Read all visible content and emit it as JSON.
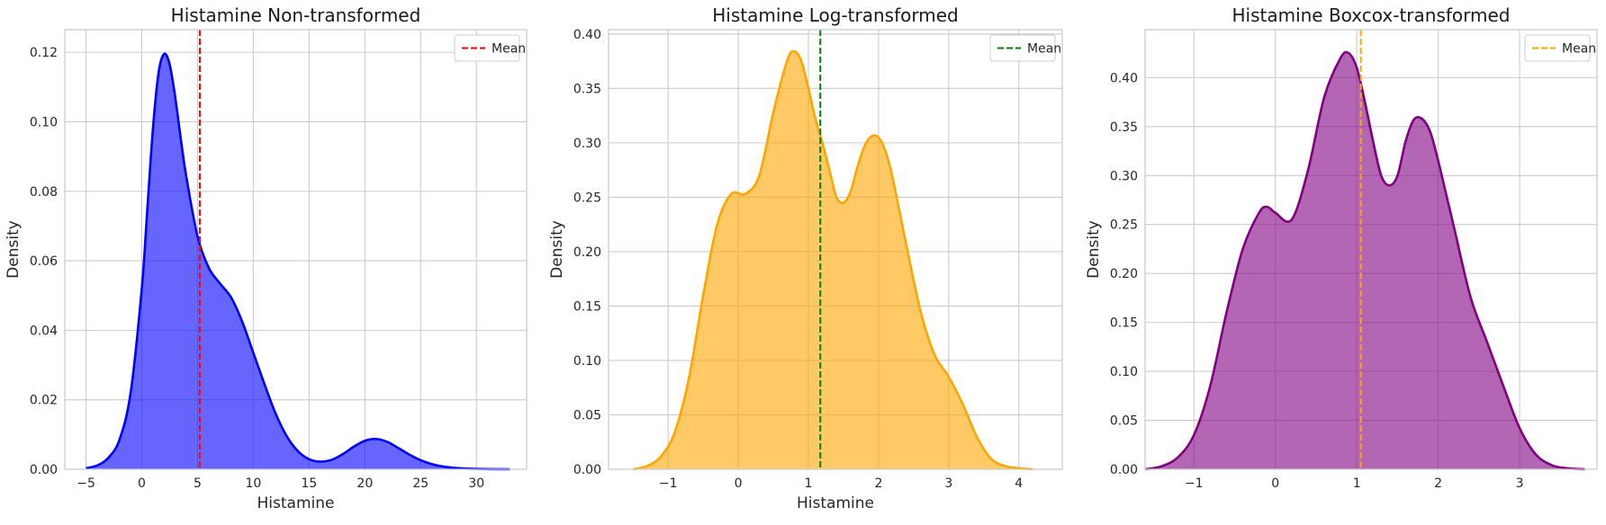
{
  "chart_data": [
    {
      "type": "area",
      "title": "Histamine Non-transformed",
      "xlabel": "Histamine",
      "ylabel": "Density",
      "xlim": [
        -6.9,
        34.5
      ],
      "ylim": [
        0,
        0.1265
      ],
      "xticks": [
        -5,
        0,
        5,
        10,
        15,
        20,
        25,
        30
      ],
      "yticks": [
        0.0,
        0.02,
        0.04,
        0.06,
        0.08,
        0.1,
        0.12
      ],
      "ytick_decimals": 2,
      "grid": true,
      "legend": {
        "position": "top-right",
        "entries": [
          "Mean"
        ]
      },
      "fill_color": "#0000ff",
      "line_color": "#0000ff",
      "mean": 5.2,
      "mean_color": "#ff0000",
      "series": [
        {
          "x": [
            -5,
            -4,
            -3,
            -2,
            -1,
            0,
            0.5,
            1,
            1.5,
            2,
            2.5,
            3,
            3.5,
            4,
            5,
            6,
            7,
            8,
            9,
            10,
            11,
            12,
            13,
            14,
            15,
            16,
            17,
            18,
            19,
            20,
            21,
            22,
            23,
            24,
            25,
            26,
            27,
            28,
            29,
            30,
            31,
            32,
            33
          ],
          "y": [
            0.0003,
            0.0011,
            0.0033,
            0.0085,
            0.022,
            0.052,
            0.075,
            0.098,
            0.114,
            0.1195,
            0.1165,
            0.107,
            0.095,
            0.084,
            0.067,
            0.058,
            0.0535,
            0.0495,
            0.0425,
            0.0335,
            0.0245,
            0.016,
            0.0095,
            0.0052,
            0.0029,
            0.0022,
            0.0027,
            0.0043,
            0.0065,
            0.0082,
            0.0087,
            0.0079,
            0.0061,
            0.0042,
            0.0026,
            0.0015,
            0.0008,
            0.0004,
            0.0002,
            0.0001,
            5e-05,
            2e-05,
            0.0
          ]
        }
      ]
    },
    {
      "type": "area",
      "title": "Histamine Log-transformed",
      "xlabel": "Histamine",
      "ylabel": "Density",
      "xlim": [
        -1.85,
        4.62
      ],
      "ylim": [
        0,
        0.404
      ],
      "xticks": [
        -1,
        0,
        1,
        2,
        3,
        4
      ],
      "yticks": [
        0.0,
        0.05,
        0.1,
        0.15,
        0.2,
        0.25,
        0.3,
        0.35,
        0.4
      ],
      "ytick_decimals": 2,
      "grid": true,
      "legend": {
        "position": "top-right",
        "entries": [
          "Mean"
        ]
      },
      "fill_color": "#ffa500",
      "line_color": "#ffa500",
      "mean": 1.17,
      "mean_color": "#008000",
      "series": [
        {
          "x": [
            -1.5,
            -1.3,
            -1.1,
            -0.9,
            -0.7,
            -0.5,
            -0.3,
            -0.1,
            0.1,
            0.3,
            0.5,
            0.7,
            0.8,
            0.9,
            1.0,
            1.1,
            1.2,
            1.3,
            1.4,
            1.5,
            1.6,
            1.7,
            1.8,
            1.9,
            2.0,
            2.1,
            2.2,
            2.4,
            2.6,
            2.8,
            3.0,
            3.2,
            3.4,
            3.6,
            3.8,
            4.0,
            4.2
          ],
          "y": [
            0.0,
            0.003,
            0.012,
            0.035,
            0.085,
            0.16,
            0.225,
            0.253,
            0.253,
            0.27,
            0.328,
            0.376,
            0.384,
            0.375,
            0.35,
            0.322,
            0.3,
            0.275,
            0.25,
            0.245,
            0.255,
            0.278,
            0.297,
            0.306,
            0.305,
            0.292,
            0.268,
            0.205,
            0.145,
            0.105,
            0.085,
            0.06,
            0.03,
            0.01,
            0.003,
            0.001,
            0.0
          ]
        }
      ]
    },
    {
      "type": "area",
      "title": "Histamine Boxcox-transformed",
      "xlabel": "",
      "ylabel": "Density",
      "xlim": [
        -1.6,
        3.95
      ],
      "ylim": [
        0,
        0.449
      ],
      "xticks": [
        -1,
        0,
        1,
        2,
        3
      ],
      "yticks": [
        0.0,
        0.05,
        0.1,
        0.15,
        0.2,
        0.25,
        0.3,
        0.35,
        0.4
      ],
      "ytick_decimals": 2,
      "grid": true,
      "legend": {
        "position": "top-right",
        "entries": [
          "Mean"
        ]
      },
      "fill_color": "#800080",
      "line_color": "#800080",
      "mean": 1.05,
      "mean_color": "#ffa500",
      "series": [
        {
          "x": [
            -1.6,
            -1.4,
            -1.2,
            -1.0,
            -0.8,
            -0.6,
            -0.4,
            -0.2,
            -0.1,
            0.0,
            0.2,
            0.4,
            0.6,
            0.8,
            0.9,
            1.0,
            1.1,
            1.2,
            1.3,
            1.4,
            1.5,
            1.6,
            1.7,
            1.8,
            1.9,
            2.0,
            2.1,
            2.2,
            2.4,
            2.6,
            2.8,
            3.0,
            3.2,
            3.4,
            3.6,
            3.8
          ],
          "y": [
            0.0,
            0.003,
            0.012,
            0.035,
            0.085,
            0.16,
            0.225,
            0.262,
            0.268,
            0.262,
            0.255,
            0.305,
            0.38,
            0.42,
            0.425,
            0.41,
            0.375,
            0.335,
            0.3,
            0.29,
            0.3,
            0.335,
            0.357,
            0.358,
            0.345,
            0.315,
            0.28,
            0.245,
            0.175,
            0.13,
            0.085,
            0.042,
            0.015,
            0.004,
            0.001,
            0.0
          ]
        }
      ]
    }
  ]
}
